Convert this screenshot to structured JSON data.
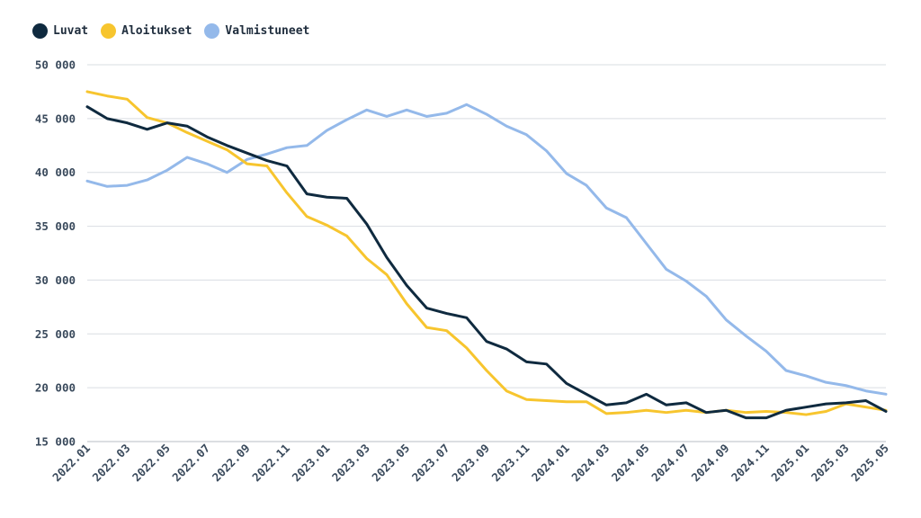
{
  "chart_data": {
    "type": "line",
    "title": "",
    "xlabel": "",
    "ylabel": "",
    "ylim": [
      15000,
      50000
    ],
    "yticks": [
      15000,
      20000,
      25000,
      30000,
      35000,
      40000,
      45000,
      50000
    ],
    "ytick_labels": [
      "15 000",
      "20 000",
      "25 000",
      "30 000",
      "35 000",
      "40 000",
      "45 000",
      "50 000"
    ],
    "x": [
      "2022.01",
      "2022.02",
      "2022.03",
      "2022.04",
      "2022.05",
      "2022.06",
      "2022.07",
      "2022.08",
      "2022.09",
      "2022.10",
      "2022.11",
      "2022.12",
      "2023.01",
      "2023.02",
      "2023.03",
      "2023.04",
      "2023.05",
      "2023.06",
      "2023.07",
      "2023.08",
      "2023.09",
      "2023.10",
      "2023.11",
      "2023.12",
      "2024.01",
      "2024.02",
      "2024.03",
      "2024.04",
      "2024.05",
      "2024.06",
      "2024.07",
      "2024.08",
      "2024.09",
      "2024.10",
      "2024.11",
      "2024.12",
      "2025.01",
      "2025.02",
      "2025.03",
      "2025.04",
      "2025.05"
    ],
    "xtick_labels": [
      "2022.01",
      "2022.03",
      "2022.05",
      "2022.07",
      "2022.09",
      "2022.11",
      "2023.01",
      "2023.03",
      "2023.05",
      "2023.07",
      "2023.09",
      "2023.11",
      "2024.01",
      "2024.03",
      "2024.05",
      "2024.07",
      "2024.09",
      "2024.11",
      "2025.01",
      "2025.03",
      "2025.05"
    ],
    "grid": true,
    "legend_position": "top-left",
    "series": [
      {
        "name": "Luvat",
        "color": "#0f2a3f",
        "values": [
          46100,
          45000,
          44600,
          44000,
          44600,
          44300,
          43300,
          42500,
          41800,
          41100,
          40600,
          38000,
          37700,
          37600,
          35200,
          32100,
          29500,
          27400,
          26900,
          26500,
          24300,
          23600,
          22400,
          22200,
          20400,
          19400,
          18400,
          18600,
          19400,
          18400,
          18600,
          17700,
          17900,
          17200,
          17200,
          17900,
          18200,
          18500,
          18600,
          18800,
          17800
        ]
      },
      {
        "name": "Aloitukset",
        "color": "#f7c52e",
        "values": [
          47500,
          47100,
          46800,
          45100,
          44600,
          43700,
          42900,
          42100,
          40800,
          40600,
          38100,
          35900,
          35100,
          34100,
          32000,
          30500,
          27800,
          25600,
          25300,
          23700,
          21600,
          19700,
          18900,
          18800,
          18700,
          18700,
          17600,
          17700,
          17900,
          17700,
          17900,
          17700,
          17900,
          17700,
          17800,
          17700,
          17500,
          17800,
          18500,
          18200,
          17900
        ]
      },
      {
        "name": "Valmistuneet",
        "color": "#94b9ea",
        "values": [
          39200,
          38700,
          38800,
          39300,
          40200,
          41400,
          40800,
          40000,
          41200,
          41700,
          42300,
          42500,
          43900,
          44900,
          45800,
          45200,
          45800,
          45200,
          45500,
          46300,
          45400,
          44300,
          43500,
          42000,
          39900,
          38800,
          36700,
          35800,
          33400,
          31000,
          29900,
          28500,
          26300,
          24800,
          23400,
          21600,
          21100,
          20500,
          20200,
          19700,
          19400
        ]
      }
    ]
  }
}
